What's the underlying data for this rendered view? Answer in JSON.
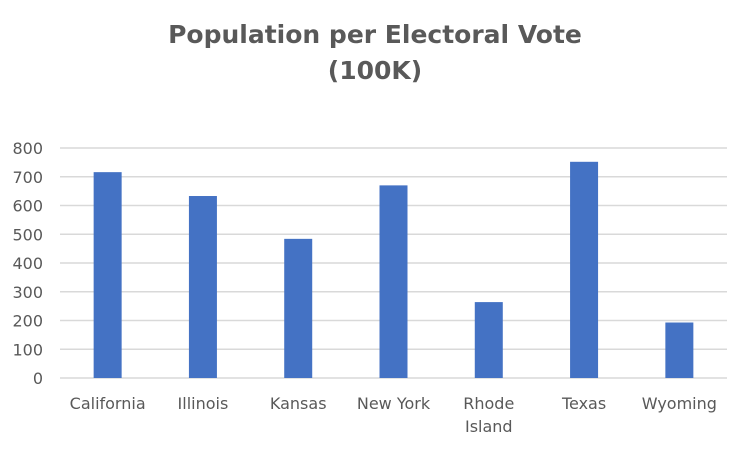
{
  "chart_data": {
    "type": "bar",
    "title": "Population per Electoral Vote",
    "subtitle": "(100K)",
    "xlabel": "",
    "ylabel": "",
    "categories": [
      "California",
      "Illinois",
      "Kansas",
      "New York",
      "Rhode Island",
      "Texas",
      "Wyoming"
    ],
    "category_lines": [
      [
        "California"
      ],
      [
        "Illinois"
      ],
      [
        "Kansas"
      ],
      [
        "New York"
      ],
      [
        "Rhode",
        "Island"
      ],
      [
        "Texas"
      ],
      [
        "Wyoming"
      ]
    ],
    "values": [
      716,
      633,
      484,
      670,
      264,
      752,
      193
    ],
    "ylim": [
      0,
      800
    ],
    "yticks": [
      0,
      100,
      200,
      300,
      400,
      500,
      600,
      700,
      800
    ],
    "grid": true,
    "legend": "none",
    "colors": {
      "bar": "#4472C4",
      "grid": "#D9D9D9",
      "text": "#595959"
    }
  }
}
